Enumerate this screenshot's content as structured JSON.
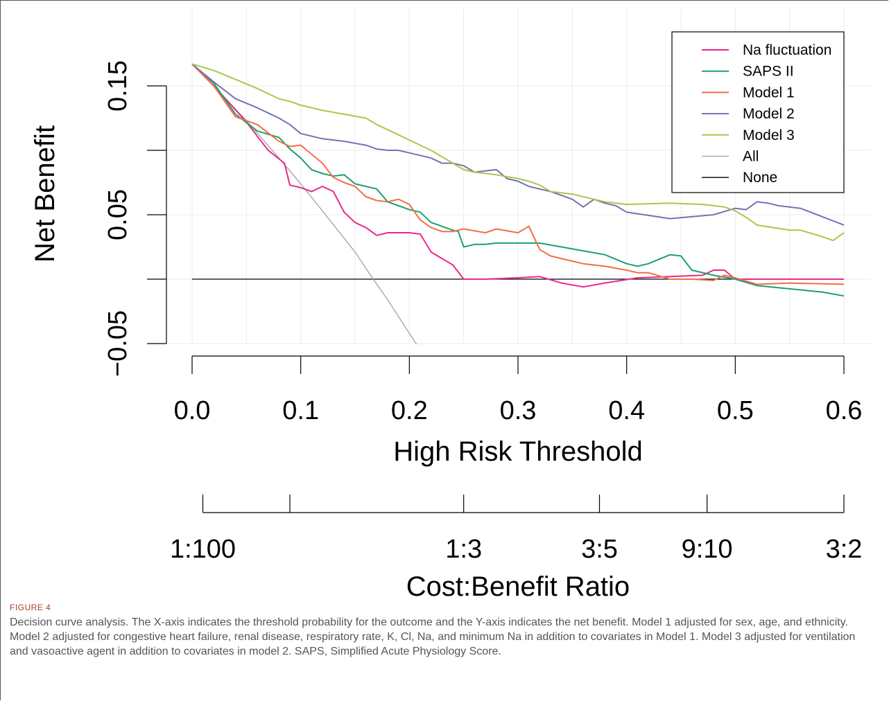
{
  "chart_data": {
    "type": "line",
    "ylabel": "Net Benefit",
    "xlabel": "High Risk Threshold",
    "x2label": "Cost:Benefit Ratio",
    "xlim": [
      0,
      0.6
    ],
    "ylim": [
      -0.05,
      0.15
    ],
    "x_ticks": [
      0,
      0.1,
      0.2,
      0.3,
      0.4,
      0.5,
      0.6
    ],
    "x_tick_labels": [
      "0.0",
      "0.1",
      "0.2",
      "0.3",
      "0.4",
      "0.5",
      "0.6"
    ],
    "y_ticks": [
      -0.05,
      0,
      0.05,
      0.1,
      0.15
    ],
    "y_tick_labels": [
      "−0.05",
      "",
      "0.05",
      "",
      "0.15"
    ],
    "x2_ticks": [
      0.0099,
      0.09,
      0.25,
      0.375,
      0.474,
      0.6
    ],
    "x2_tick_labels": [
      "1:100",
      "",
      "1:3",
      "3:5",
      "9:10",
      "3:2"
    ],
    "grid": true,
    "legend_position": "top-right",
    "series": [
      {
        "name": "Na fluctuation",
        "color": "#e7298a",
        "x": [
          0,
          0.02,
          0.05,
          0.07,
          0.085,
          0.09,
          0.1,
          0.11,
          0.12,
          0.13,
          0.14,
          0.15,
          0.16,
          0.17,
          0.18,
          0.19,
          0.2,
          0.21,
          0.22,
          0.23,
          0.24,
          0.25,
          0.27,
          0.3,
          0.32,
          0.34,
          0.36,
          0.38,
          0.41,
          0.44,
          0.47,
          0.48,
          0.49,
          0.5,
          0.55,
          0.6
        ],
        "y": [
          0.167,
          0.15,
          0.122,
          0.1,
          0.09,
          0.073,
          0.071,
          0.068,
          0.072,
          0.068,
          0.052,
          0.044,
          0.04,
          0.034,
          0.036,
          0.036,
          0.036,
          0.035,
          0.021,
          0.016,
          0.011,
          0.0,
          0.0,
          0.001,
          0.002,
          -0.003,
          -0.006,
          -0.003,
          0.001,
          0.002,
          0.003,
          0.007,
          0.007,
          0.0,
          0.0,
          0.0
        ]
      },
      {
        "name": "SAPS II",
        "color": "#1b9e77",
        "x": [
          0,
          0.02,
          0.04,
          0.06,
          0.08,
          0.09,
          0.1,
          0.11,
          0.12,
          0.13,
          0.14,
          0.15,
          0.16,
          0.17,
          0.18,
          0.19,
          0.2,
          0.21,
          0.22,
          0.23,
          0.24,
          0.245,
          0.25,
          0.26,
          0.27,
          0.28,
          0.3,
          0.32,
          0.36,
          0.38,
          0.4,
          0.41,
          0.42,
          0.44,
          0.45,
          0.46,
          0.48,
          0.5,
          0.52,
          0.58,
          0.6
        ],
        "y": [
          0.167,
          0.152,
          0.128,
          0.115,
          0.11,
          0.101,
          0.094,
          0.085,
          0.082,
          0.08,
          0.081,
          0.074,
          0.072,
          0.07,
          0.06,
          0.057,
          0.054,
          0.052,
          0.044,
          0.041,
          0.038,
          0.037,
          0.025,
          0.027,
          0.027,
          0.028,
          0.028,
          0.028,
          0.022,
          0.019,
          0.012,
          0.01,
          0.012,
          0.019,
          0.018,
          0.007,
          0.003,
          0.0,
          -0.005,
          -0.01,
          -0.013
        ]
      },
      {
        "name": "Model 1",
        "color": "#f46d43",
        "x": [
          0,
          0.02,
          0.04,
          0.06,
          0.08,
          0.09,
          0.1,
          0.11,
          0.12,
          0.13,
          0.14,
          0.15,
          0.16,
          0.17,
          0.18,
          0.19,
          0.2,
          0.21,
          0.22,
          0.23,
          0.24,
          0.25,
          0.27,
          0.28,
          0.3,
          0.31,
          0.32,
          0.33,
          0.35,
          0.36,
          0.38,
          0.4,
          0.41,
          0.42,
          0.44,
          0.46,
          0.48,
          0.49,
          0.5,
          0.52,
          0.55,
          0.6
        ],
        "y": [
          0.167,
          0.15,
          0.126,
          0.12,
          0.107,
          0.103,
          0.104,
          0.097,
          0.09,
          0.079,
          0.075,
          0.072,
          0.064,
          0.061,
          0.06,
          0.062,
          0.058,
          0.046,
          0.04,
          0.037,
          0.037,
          0.039,
          0.036,
          0.039,
          0.036,
          0.041,
          0.023,
          0.018,
          0.014,
          0.012,
          0.01,
          0.007,
          0.005,
          0.005,
          0.0,
          0.0,
          -0.001,
          0.003,
          0.001,
          -0.004,
          -0.003,
          -0.004
        ]
      },
      {
        "name": "Model 2",
        "color": "#7570b3",
        "x": [
          0,
          0.02,
          0.04,
          0.06,
          0.08,
          0.09,
          0.1,
          0.12,
          0.14,
          0.16,
          0.17,
          0.18,
          0.19,
          0.2,
          0.22,
          0.23,
          0.24,
          0.25,
          0.26,
          0.27,
          0.28,
          0.29,
          0.3,
          0.31,
          0.32,
          0.33,
          0.34,
          0.35,
          0.36,
          0.37,
          0.38,
          0.39,
          0.4,
          0.44,
          0.48,
          0.5,
          0.51,
          0.52,
          0.53,
          0.54,
          0.56,
          0.6
        ],
        "y": [
          0.167,
          0.153,
          0.14,
          0.133,
          0.125,
          0.12,
          0.113,
          0.109,
          0.107,
          0.104,
          0.101,
          0.1,
          0.1,
          0.098,
          0.094,
          0.09,
          0.09,
          0.088,
          0.083,
          0.084,
          0.085,
          0.078,
          0.076,
          0.072,
          0.07,
          0.068,
          0.065,
          0.062,
          0.056,
          0.062,
          0.059,
          0.057,
          0.052,
          0.047,
          0.05,
          0.055,
          0.054,
          0.06,
          0.059,
          0.057,
          0.055,
          0.042
        ]
      },
      {
        "name": "Model 3",
        "color": "#a6c94a",
        "x": [
          0,
          0.02,
          0.04,
          0.06,
          0.08,
          0.09,
          0.1,
          0.12,
          0.14,
          0.16,
          0.17,
          0.18,
          0.19,
          0.2,
          0.21,
          0.22,
          0.23,
          0.24,
          0.25,
          0.26,
          0.28,
          0.3,
          0.31,
          0.32,
          0.33,
          0.35,
          0.37,
          0.38,
          0.4,
          0.44,
          0.47,
          0.49,
          0.5,
          0.51,
          0.52,
          0.55,
          0.56,
          0.58,
          0.59,
          0.6
        ],
        "y": [
          0.167,
          0.162,
          0.155,
          0.148,
          0.14,
          0.138,
          0.135,
          0.131,
          0.128,
          0.125,
          0.12,
          0.116,
          0.112,
          0.108,
          0.104,
          0.1,
          0.095,
          0.09,
          0.085,
          0.083,
          0.081,
          0.078,
          0.076,
          0.073,
          0.068,
          0.066,
          0.062,
          0.06,
          0.058,
          0.059,
          0.058,
          0.056,
          0.053,
          0.048,
          0.042,
          0.038,
          0.038,
          0.033,
          0.03,
          0.036
        ]
      },
      {
        "name": "All",
        "color": "#a0a0a0",
        "x": [
          0,
          0.02,
          0.05,
          0.08,
          0.1,
          0.12,
          0.15,
          0.1667,
          0.18,
          0.2,
          0.22
        ],
        "y": [
          0.167,
          0.15,
          0.123,
          0.094,
          0.074,
          0.053,
          0.021,
          0.0,
          -0.016,
          -0.042,
          -0.068
        ]
      },
      {
        "name": "None",
        "color": "#000000",
        "x": [
          0,
          0.6
        ],
        "y": [
          0,
          0
        ]
      }
    ]
  },
  "figure": {
    "label": "FIGURE 4",
    "caption": "Decision curve analysis. The X-axis indicates the threshold probability for the outcome and the Y-axis indicates the net benefit. Model 1 adjusted for sex, age, and ethnicity. Model 2 adjusted for congestive heart failure, renal disease, respiratory rate, K, Cl, Na, and minimum Na in addition to covariates in Model 1. Model 3 adjusted for ventilation and vasoactive agent in addition to covariates in model 2. SAPS, Simplified Acute Physiology Score."
  }
}
